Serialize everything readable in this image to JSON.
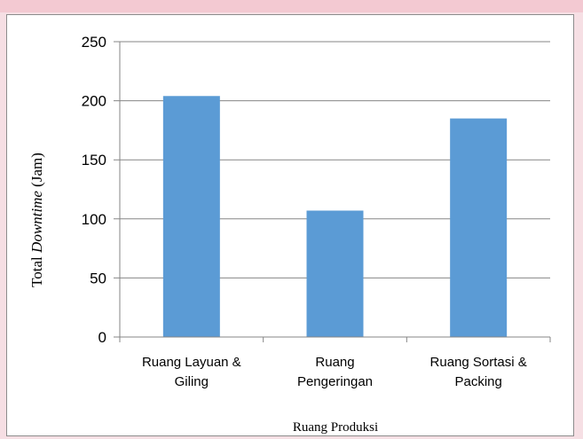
{
  "colors": {
    "bar": "#5b9bd5",
    "grid": "#868686",
    "axis": "#868686",
    "page_bg": "#f6dfe4",
    "panel": "#ffffff"
  },
  "chart_data": {
    "type": "bar",
    "categories": [
      [
        "Ruang Layuan &",
        "Giling"
      ],
      [
        "Ruang",
        "Pengeringan"
      ],
      [
        "Ruang Sortasi &",
        "Packing"
      ]
    ],
    "values": [
      204,
      107,
      185
    ],
    "xlabel": "Ruang Produksi",
    "ylabel": {
      "prefix": "Total ",
      "italic": "Downtime",
      "suffix": " (Jam)"
    },
    "ylim": [
      0,
      250
    ],
    "yticks": [
      0,
      50,
      100,
      150,
      200,
      250
    ],
    "grid": true,
    "legend": "none"
  }
}
